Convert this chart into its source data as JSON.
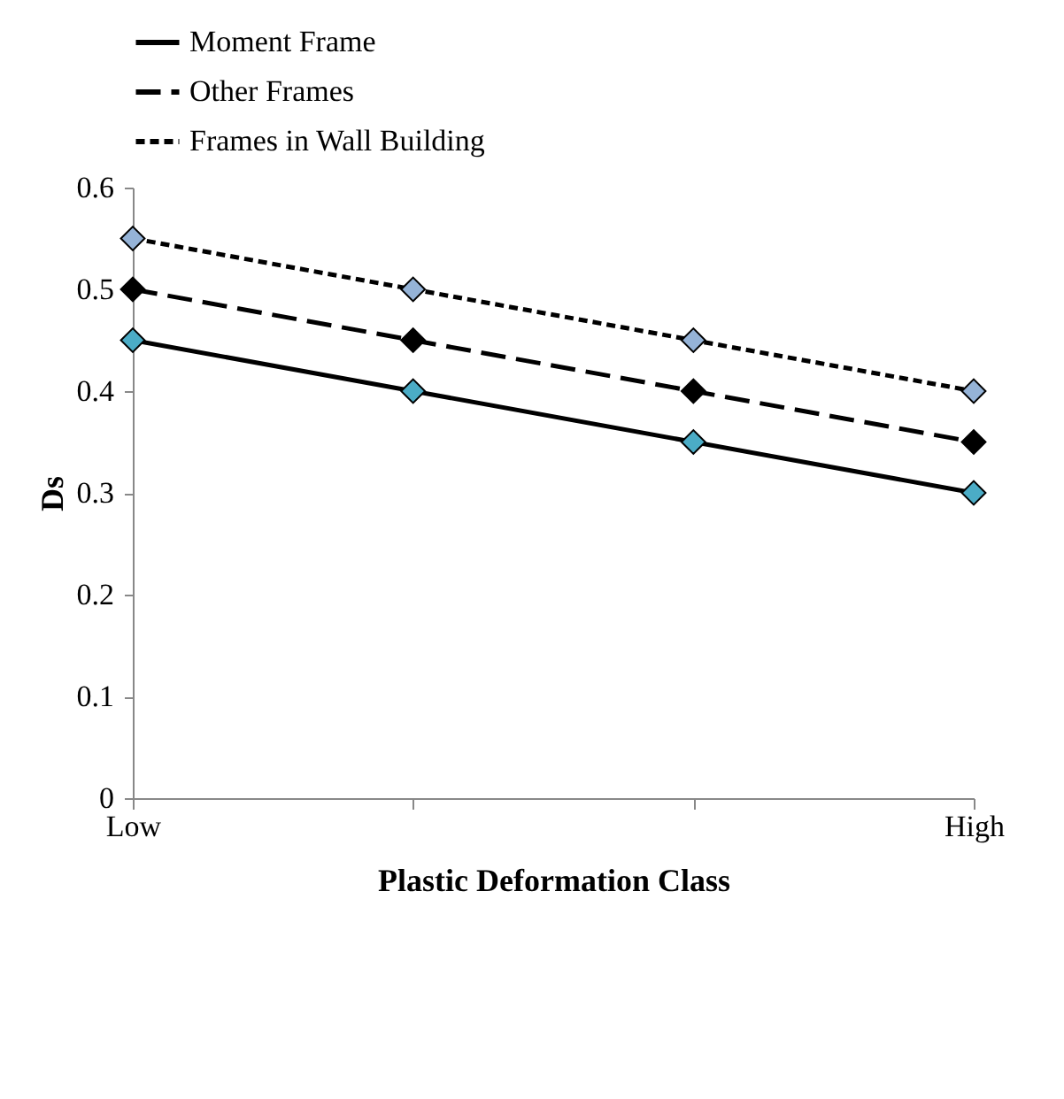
{
  "chart_data": {
    "type": "line",
    "xlabel": "Plastic Deformation Class",
    "ylabel": "Ds",
    "categories": [
      "Low",
      null,
      null,
      "High"
    ],
    "series": [
      {
        "name": "Moment Frame",
        "color": "#000000",
        "colors": [
          "#4bacc6",
          "#4bacc6",
          "#4bacc6",
          "#4bacc6"
        ],
        "line_style": "solid",
        "values": [
          0.45,
          0.4,
          0.35,
          0.3
        ]
      },
      {
        "name": "Other Frames",
        "color": "#000000",
        "colors": [
          "#000000",
          "#000000",
          "#000000",
          "#000000"
        ],
        "line_style": "dashed",
        "values": [
          0.5,
          0.45,
          0.4,
          0.35
        ]
      },
      {
        "name": "Frames in Wall Building",
        "color": "#000000",
        "colors": [
          "#95b3d7",
          "#95b3d7",
          "#95b3d7",
          "#95b3d7"
        ],
        "line_style": "dotted",
        "values": [
          0.55,
          0.5,
          0.45,
          0.4
        ]
      }
    ],
    "ylim": [
      0,
      0.6
    ],
    "yticks": [
      0,
      0.1,
      0.2,
      0.3,
      0.4,
      0.5,
      0.6
    ],
    "marker": "diamond",
    "legend": "top",
    "grid": false
  }
}
